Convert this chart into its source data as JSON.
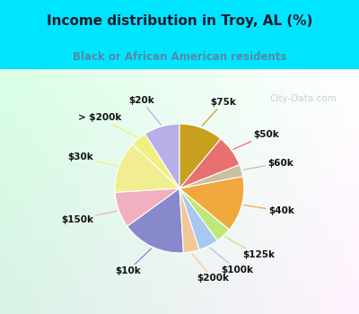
{
  "title": "Income distribution in Troy, AL (%)",
  "subtitle": "Black or African American residents",
  "title_color": "#1a1a2e",
  "subtitle_color": "#5588aa",
  "bg_top": "#00e5ff",
  "bg_chart_color": "#d8efe0",
  "labels": [
    "$20k",
    "> $200k",
    "$30k",
    "$150k",
    "$10k",
    "$200k",
    "$100k",
    "$125k",
    "$40k",
    "$60k",
    "$50k",
    "$75k"
  ],
  "sizes": [
    9,
    4,
    13,
    9,
    16,
    4,
    5,
    4,
    14,
    3,
    8,
    11
  ],
  "colors": [
    "#b8aee8",
    "#f0ef80",
    "#f0ee90",
    "#f0b0c0",
    "#8888cc",
    "#f0c898",
    "#a8c8f0",
    "#c0e878",
    "#f0a83c",
    "#c8c0a0",
    "#e87070",
    "#c8a020"
  ],
  "label_font_size": 7.5,
  "watermark": "City-Data.com"
}
